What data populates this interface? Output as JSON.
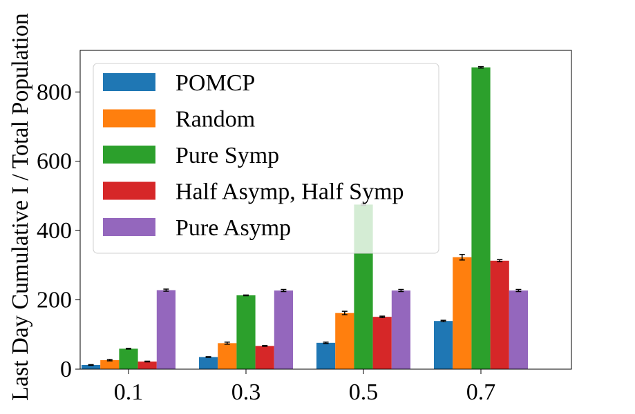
{
  "chart_data": {
    "type": "bar",
    "title": "",
    "xlabel": "",
    "ylabel": "Last Day Cumulative I / Total Population",
    "categories": [
      "0.1",
      "0.3",
      "0.5",
      "0.7"
    ],
    "ylim": [
      0,
      920
    ],
    "yticks": [
      0,
      200,
      400,
      600,
      800
    ],
    "grid": false,
    "legend_position": "upper-left",
    "error_bars": true,
    "series": [
      {
        "name": "POMCP",
        "color": "#1f77b4",
        "values": [
          12,
          35,
          76,
          139
        ],
        "errors": [
          1,
          1,
          2,
          2
        ]
      },
      {
        "name": "Random",
        "color": "#ff7f0e",
        "values": [
          26,
          75,
          162,
          323
        ],
        "errors": [
          2,
          3,
          5,
          8
        ]
      },
      {
        "name": "Pure Symp",
        "color": "#2ca02c",
        "values": [
          59,
          213,
          475,
          871
        ],
        "errors": [
          1,
          1,
          2,
          2
        ]
      },
      {
        "name": "Half Asymp, Half Symp",
        "color": "#d62728",
        "values": [
          22,
          67,
          151,
          313
        ],
        "errors": [
          1,
          1,
          2,
          3
        ]
      },
      {
        "name": "Pure Asymp",
        "color": "#9467bd",
        "values": [
          228,
          227,
          227,
          227
        ],
        "errors": [
          3,
          3,
          3,
          3
        ]
      }
    ]
  }
}
